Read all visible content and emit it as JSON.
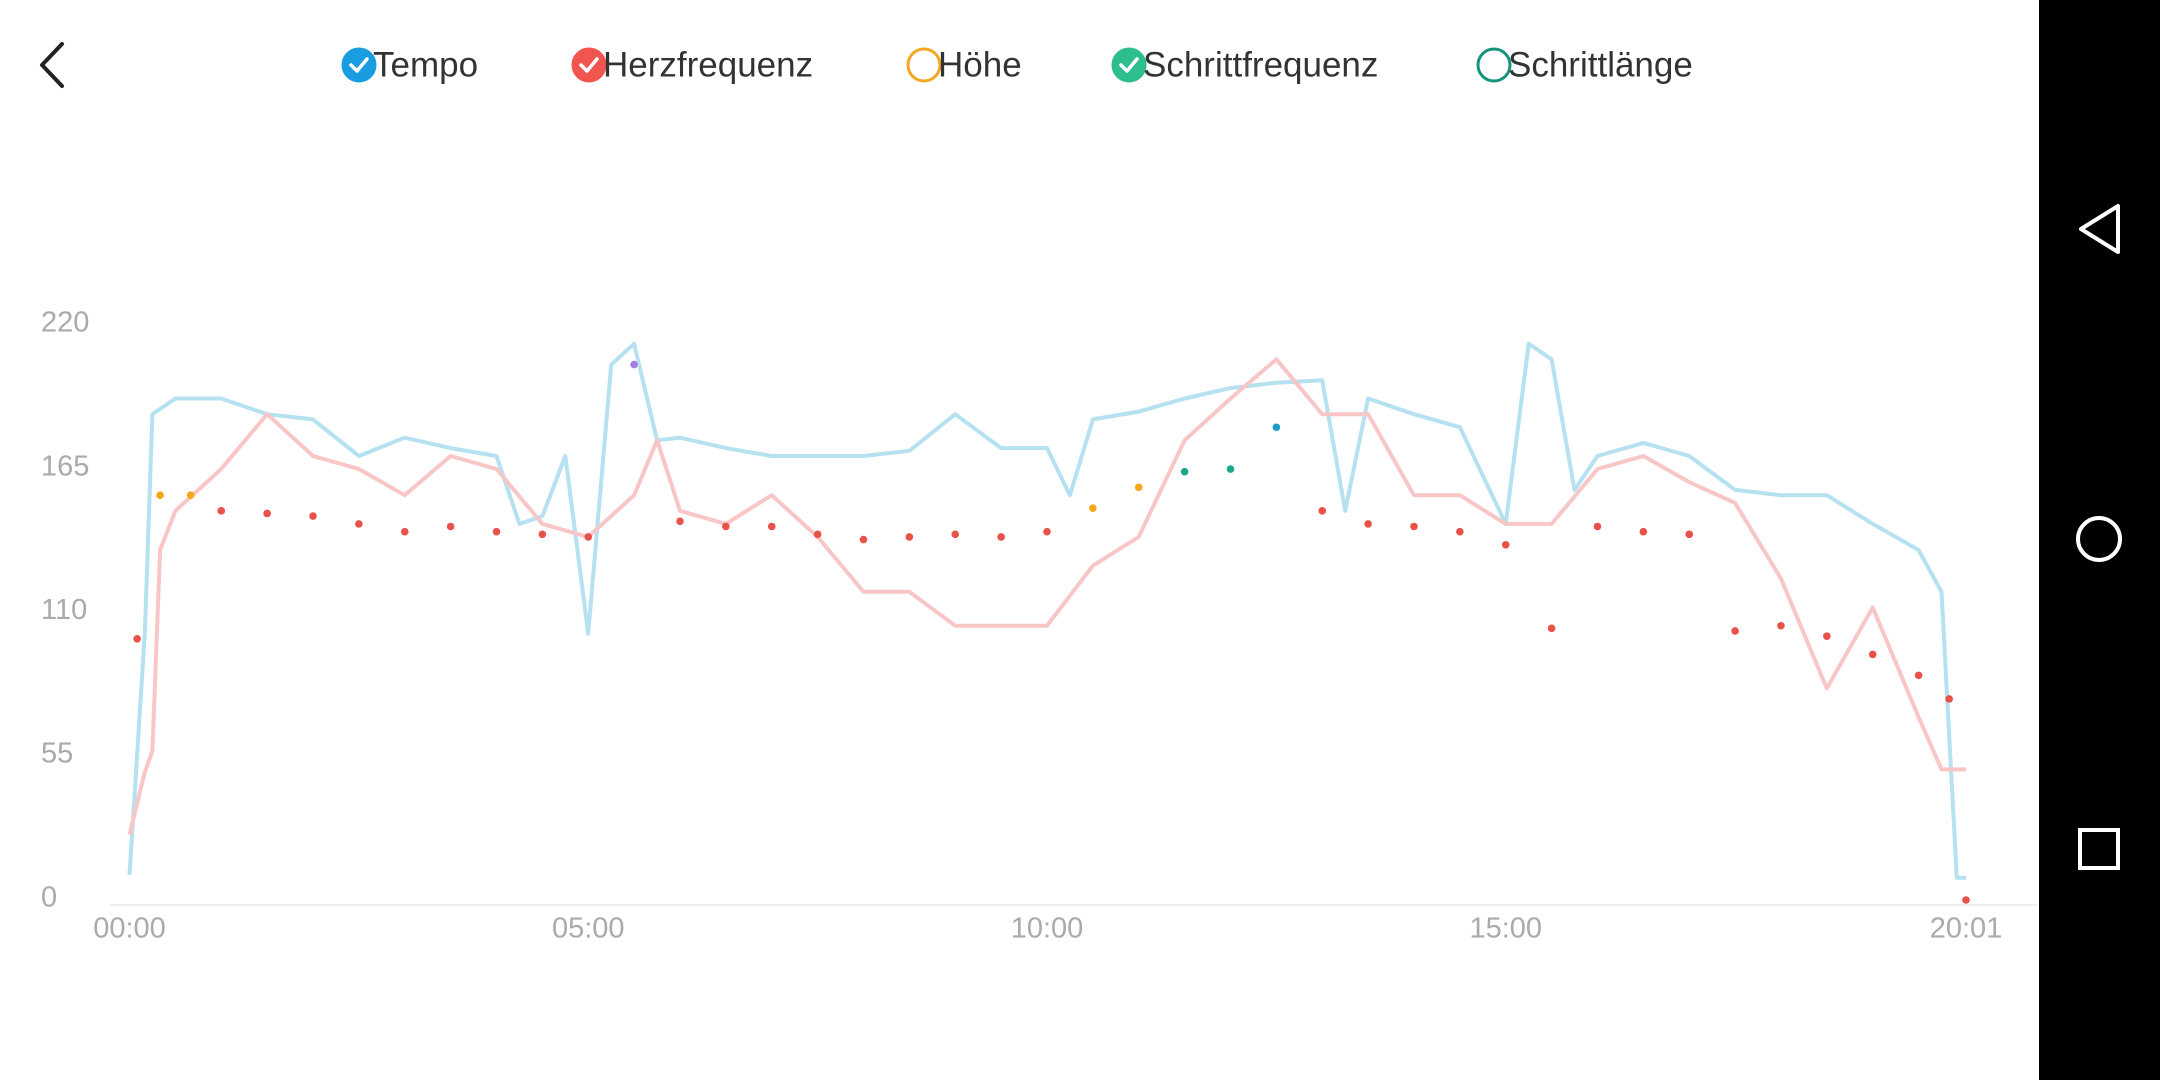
{
  "chart_data": {
    "type": "line",
    "ylim": [
      0,
      220
    ],
    "yticks": [
      0,
      55,
      110,
      165,
      220
    ],
    "xlim": [
      0,
      1201
    ],
    "xticks": [
      {
        "value": 0,
        "label": "00:00"
      },
      {
        "value": 300,
        "label": "05:00"
      },
      {
        "value": 600,
        "label": "10:00"
      },
      {
        "value": 900,
        "label": "15:00"
      },
      {
        "value": 1201,
        "label": "20:01"
      }
    ],
    "series": [
      {
        "name": "Tempo",
        "color": "#1a9de0",
        "line_color": "#b5e1f1",
        "checked": true,
        "style": "line",
        "x": [
          0,
          10,
          15,
          30,
          60,
          90,
          120,
          150,
          180,
          210,
          240,
          255,
          270,
          285,
          300,
          315,
          330,
          345,
          360,
          390,
          420,
          450,
          480,
          510,
          540,
          570,
          600,
          615,
          630,
          660,
          690,
          720,
          750,
          780,
          795,
          810,
          840,
          870,
          900,
          915,
          930,
          945,
          960,
          990,
          1020,
          1050,
          1080,
          1110,
          1140,
          1170,
          1185,
          1195,
          1201
        ],
        "values": [
          10.6,
          103,
          187,
          193,
          193,
          187,
          185,
          171,
          178,
          174,
          171,
          145,
          148,
          171,
          103,
          206,
          214,
          177,
          178,
          174,
          171,
          171,
          171,
          173,
          187,
          174,
          174,
          156,
          185,
          188,
          193,
          197,
          199,
          200,
          150,
          193,
          187,
          182,
          145,
          214,
          208,
          158,
          171,
          176,
          171,
          158,
          156,
          156,
          145,
          135,
          119,
          9.5,
          9.5
        ]
      },
      {
        "name": "Herzfrequenz",
        "color": "#f0554f",
        "line_color": "#f8c6c6",
        "checked": true,
        "style": "line",
        "x": [
          0,
          10,
          15,
          20,
          30,
          60,
          90,
          120,
          150,
          180,
          210,
          240,
          270,
          300,
          330,
          345,
          360,
          390,
          420,
          450,
          480,
          510,
          540,
          570,
          600,
          630,
          660,
          690,
          720,
          750,
          780,
          810,
          840,
          870,
          900,
          930,
          960,
          990,
          1020,
          1050,
          1080,
          1110,
          1140,
          1170,
          1185,
          1201
        ],
        "values": [
          26,
          50,
          58,
          135,
          150,
          166,
          187,
          171,
          166,
          156,
          171,
          166,
          145,
          140,
          156,
          177,
          150,
          145,
          156,
          140,
          119,
          119,
          106,
          106,
          106,
          129,
          140,
          177,
          193,
          208,
          187,
          187,
          156,
          156,
          145,
          145,
          166,
          171,
          161,
          153,
          124,
          82,
          113,
          71,
          51,
          51
        ]
      },
      {
        "name": "Höhe",
        "color": "#f5a623",
        "checked": false
      },
      {
        "name": "Schrittfrequenz",
        "color": "#2ebd8f",
        "checked": true,
        "style": "dots",
        "x": [
          5,
          20,
          40,
          60,
          90,
          120,
          150,
          180,
          210,
          240,
          270,
          300,
          330,
          360,
          390,
          420,
          450,
          480,
          510,
          540,
          570,
          600,
          630,
          660,
          690,
          720,
          750,
          780,
          810,
          840,
          870,
          900,
          930,
          960,
          990,
          1020,
          1050,
          1080,
          1110,
          1140,
          1170,
          1190,
          1201
        ],
        "values": [
          101,
          156,
          156,
          150,
          149,
          148,
          145,
          142,
          144,
          142,
          141,
          140,
          206,
          146,
          144,
          144,
          141,
          139,
          140,
          141,
          140,
          142,
          151,
          159,
          165,
          166,
          182,
          150,
          145,
          144,
          142,
          137,
          105,
          144,
          142,
          141,
          104,
          106,
          102,
          95,
          87,
          78,
          1
        ],
        "point_colors": [
          "#e9524a",
          "#f4a815",
          "#f4a815",
          "#e9524a",
          "#e9524a",
          "#e9524a",
          "#e9524a",
          "#e9524a",
          "#e9524a",
          "#e9524a",
          "#e9524a",
          "#e9524a",
          "#a77be8",
          "#e9524a",
          "#e9524a",
          "#e9524a",
          "#e9524a",
          "#e9524a",
          "#e9524a",
          "#e9524a",
          "#e9524a",
          "#e9524a",
          "#f4a815",
          "#f4a815",
          "#1aa88a",
          "#1aa88a",
          "#1b9dc9",
          "#e9524a",
          "#e9524a",
          "#e9524a",
          "#e9524a",
          "#e9524a",
          "#e9524a",
          "#e9524a",
          "#e9524a",
          "#e9524a",
          "#e9524a",
          "#e9524a",
          "#e9524a",
          "#e9524a",
          "#e9524a",
          "#e9524a",
          "#e9524a"
        ]
      },
      {
        "name": "Schrittlänge",
        "color": "#17937c",
        "checked": false
      }
    ]
  }
}
